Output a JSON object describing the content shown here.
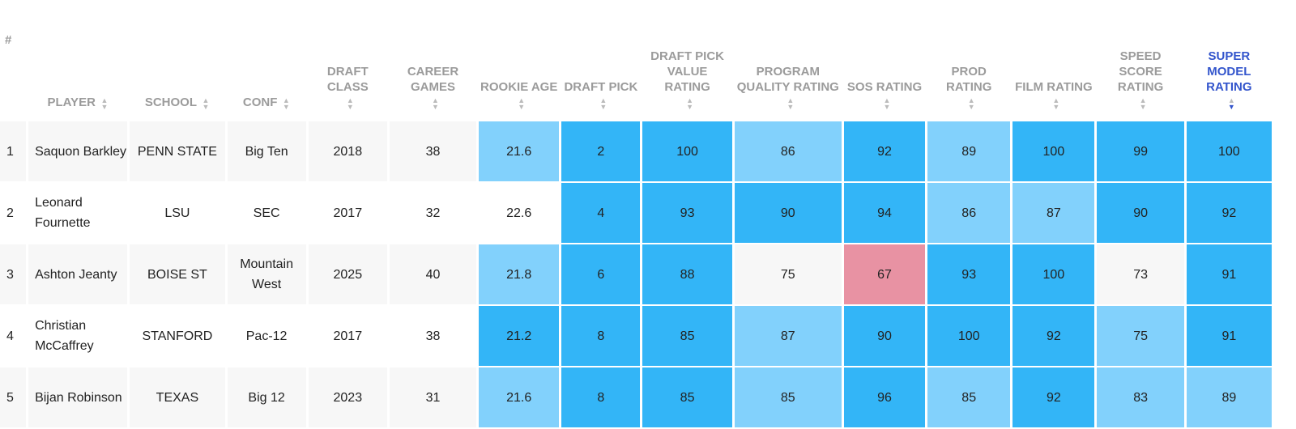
{
  "colors": {
    "dark": "#33b5f7",
    "light": "#82d1fc",
    "low": "#e892a3",
    "none": ""
  },
  "headers": [
    "#",
    "PLAYER",
    "SCHOOL",
    "CONF",
    "DRAFT CLASS",
    "CAREER GAMES",
    "ROOKIE AGE",
    "DRAFT PICK",
    "DRAFT PICK VALUE RATING",
    "PROGRAM QUALITY RATING",
    "SOS RATING",
    "PROD RATING",
    "FILM RATING",
    "SPEED SCORE RATING",
    "SUPER MODEL RATING"
  ],
  "sorted_column": "SUPER MODEL RATING",
  "rows": [
    {
      "rank": "1",
      "player": "Saquon Barkley",
      "school": "PENN STATE",
      "conf": "Big Ten",
      "class": "2018",
      "games": "38",
      "age": "21.6",
      "pick": "2",
      "dpv": "100",
      "pq": "86",
      "sos": "92",
      "prod": "89",
      "film": "100",
      "speed": "99",
      "super": "100",
      "shade": [
        "light",
        "dark",
        "dark",
        "light",
        "dark",
        "light",
        "dark",
        "dark",
        "dark"
      ]
    },
    {
      "rank": "2",
      "player": "Leonard Fournette",
      "school": "LSU",
      "conf": "SEC",
      "class": "2017",
      "games": "32",
      "age": "22.6",
      "pick": "4",
      "dpv": "93",
      "pq": "90",
      "sos": "94",
      "prod": "86",
      "film": "87",
      "speed": "90",
      "super": "92",
      "shade": [
        "none",
        "dark",
        "dark",
        "dark",
        "dark",
        "light",
        "light",
        "dark",
        "dark"
      ]
    },
    {
      "rank": "3",
      "player": "Ashton Jeanty",
      "school": "BOISE ST",
      "conf": "Mountain West",
      "class": "2025",
      "games": "40",
      "age": "21.8",
      "pick": "6",
      "dpv": "88",
      "pq": "75",
      "sos": "67",
      "prod": "93",
      "film": "100",
      "speed": "73",
      "super": "91",
      "shade": [
        "light",
        "dark",
        "dark",
        "none",
        "low",
        "dark",
        "dark",
        "none",
        "dark"
      ]
    },
    {
      "rank": "4",
      "player": "Christian McCaffrey",
      "school": "STANFORD",
      "conf": "Pac-12",
      "class": "2017",
      "games": "38",
      "age": "21.2",
      "pick": "8",
      "dpv": "85",
      "pq": "87",
      "sos": "90",
      "prod": "100",
      "film": "92",
      "speed": "75",
      "super": "91",
      "shade": [
        "dark",
        "dark",
        "dark",
        "light",
        "dark",
        "dark",
        "dark",
        "light",
        "dark"
      ]
    },
    {
      "rank": "5",
      "player": "Bijan Robinson",
      "school": "TEXAS",
      "conf": "Big 12",
      "class": "2023",
      "games": "31",
      "age": "21.6",
      "pick": "8",
      "dpv": "85",
      "pq": "85",
      "sos": "96",
      "prod": "85",
      "film": "92",
      "speed": "83",
      "super": "89",
      "shade": [
        "light",
        "dark",
        "dark",
        "light",
        "dark",
        "light",
        "dark",
        "light",
        "light"
      ]
    }
  ]
}
